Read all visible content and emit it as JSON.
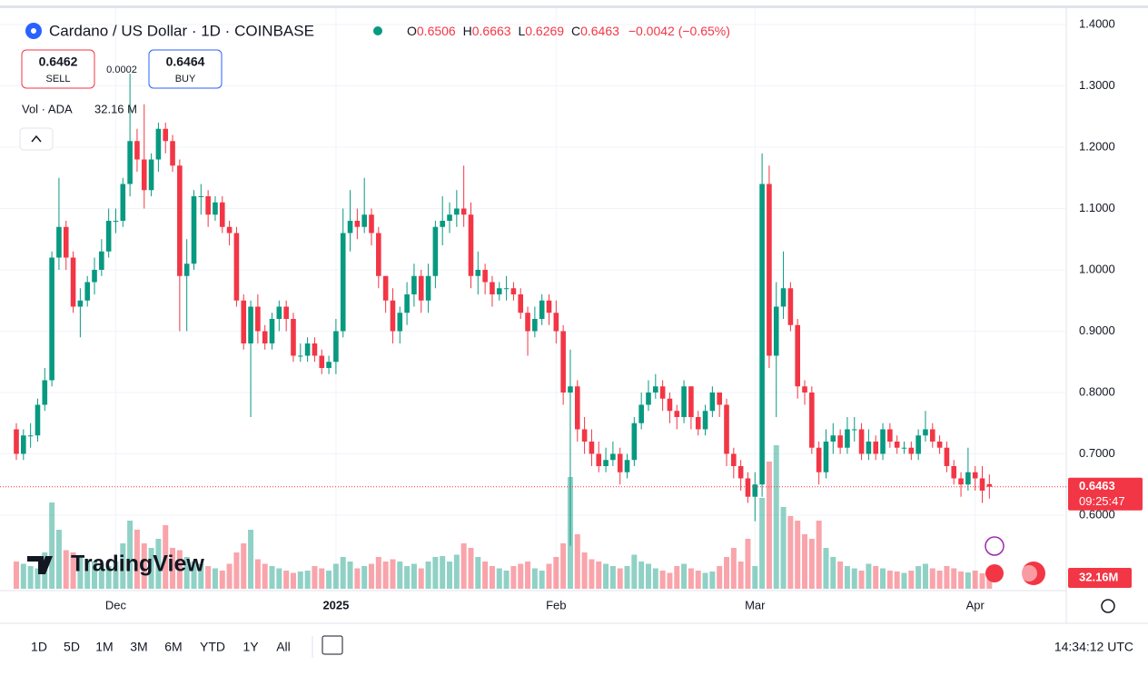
{
  "header": {
    "symbol": "Cardano / US Dollar · 1D · COINBASE",
    "ohlc_labels": [
      "O",
      "H",
      "L",
      "C"
    ],
    "change": "−0.0042 (−0.65%)",
    "sell": {
      "price": 0.6462,
      "label": "SELL"
    },
    "spread": 0.0002,
    "buy": {
      "price": 0.6464,
      "label": "BUY"
    },
    "volume_title": "Vol · ADA",
    "volume_value": "32.16 M",
    "countdown": "09:25:47",
    "volume_tag": "32.16M",
    "brand": "TradingView"
  },
  "toolbar": {
    "ranges": [
      "1D",
      "5D",
      "1M",
      "3M",
      "6M",
      "YTD",
      "1Y",
      "All"
    ],
    "clock": "14:34:12 UTC"
  },
  "chart_data": {
    "type": "candlestick",
    "up_color": "#089981",
    "down_color": "#f23645",
    "grid": true,
    "categories": [
      null,
      null,
      null,
      null,
      null,
      null,
      null,
      null,
      null,
      null,
      null,
      null,
      null,
      null,
      "Dec",
      null,
      null,
      null,
      null,
      null,
      null,
      null,
      null,
      null,
      null,
      null,
      null,
      null,
      null,
      null,
      null,
      null,
      null,
      null,
      null,
      null,
      null,
      null,
      null,
      null,
      null,
      null,
      null,
      null,
      null,
      "2025",
      null,
      null,
      null,
      null,
      null,
      null,
      null,
      null,
      null,
      null,
      null,
      null,
      null,
      null,
      null,
      null,
      null,
      null,
      null,
      null,
      null,
      null,
      null,
      null,
      null,
      null,
      null,
      null,
      null,
      null,
      "Feb",
      null,
      null,
      null,
      null,
      null,
      null,
      null,
      null,
      null,
      null,
      null,
      null,
      null,
      null,
      null,
      null,
      null,
      null,
      null,
      null,
      null,
      null,
      null,
      null,
      null,
      null,
      null,
      "Mar",
      null,
      null,
      null,
      null,
      null,
      null,
      null,
      null,
      null,
      null,
      null,
      null,
      null,
      null,
      null,
      null,
      null,
      null,
      null,
      null,
      null,
      null,
      null,
      null,
      null,
      null,
      null,
      null,
      null,
      null,
      "Apr",
      null,
      null
    ],
    "open": [
      0.74,
      0.7,
      0.73,
      0.73,
      0.78,
      0.82,
      1.02,
      1.07,
      1.02,
      0.94,
      0.95,
      0.98,
      1.0,
      1.03,
      1.08,
      1.08,
      1.14,
      1.21,
      1.18,
      1.13,
      1.18,
      1.23,
      1.21,
      1.17,
      0.99,
      1.01,
      1.12,
      1.12,
      1.09,
      1.11,
      1.07,
      1.06,
      0.95,
      0.88,
      0.94,
      0.9,
      0.88,
      0.92,
      0.94,
      0.92,
      0.86,
      0.86,
      0.88,
      0.86,
      0.84,
      0.85,
      0.9,
      1.06,
      1.08,
      1.07,
      1.09,
      1.06,
      0.99,
      0.95,
      0.9,
      0.93,
      0.96,
      0.99,
      0.95,
      0.99,
      1.07,
      1.08,
      1.09,
      1.1,
      1.09,
      0.99,
      1.0,
      0.98,
      0.96,
      0.97,
      0.97,
      0.96,
      0.93,
      0.9,
      0.92,
      0.95,
      0.93,
      0.9,
      0.8,
      0.81,
      0.74,
      0.72,
      0.7,
      0.68,
      0.69,
      0.7,
      0.67,
      0.69,
      0.75,
      0.78,
      0.8,
      0.81,
      0.79,
      0.77,
      0.76,
      0.81,
      0.76,
      0.74,
      0.77,
      0.8,
      0.78,
      0.7,
      0.68,
      0.66,
      0.63,
      0.65,
      1.14,
      0.86,
      0.94,
      0.97,
      0.91,
      0.81,
      0.8,
      0.71,
      0.67,
      0.72,
      0.73,
      0.71,
      0.74,
      0.74,
      0.7,
      0.72,
      0.7,
      0.74,
      0.72,
      0.71,
      0.71,
      0.7,
      0.73,
      0.74,
      0.72,
      0.71,
      0.68,
      0.66,
      0.65,
      0.67,
      0.66,
      0.6506
    ],
    "high": [
      0.75,
      0.74,
      0.75,
      0.79,
      0.84,
      1.03,
      1.15,
      1.08,
      1.03,
      0.97,
      0.99,
      1.02,
      1.05,
      1.1,
      1.1,
      1.15,
      1.32,
      1.23,
      1.27,
      1.19,
      1.24,
      1.24,
      1.22,
      1.18,
      1.05,
      1.13,
      1.14,
      1.13,
      1.12,
      1.12,
      1.08,
      1.07,
      0.96,
      0.95,
      0.96,
      0.91,
      0.93,
      0.95,
      0.95,
      0.93,
      0.88,
      0.89,
      0.89,
      0.87,
      0.86,
      0.92,
      1.1,
      1.13,
      1.1,
      1.15,
      1.1,
      1.07,
      0.99,
      0.97,
      0.94,
      0.98,
      1.01,
      1.0,
      1.01,
      1.08,
      1.12,
      1.11,
      1.13,
      1.17,
      1.11,
      1.03,
      1.01,
      0.99,
      0.98,
      0.99,
      0.98,
      0.97,
      0.94,
      0.94,
      0.96,
      0.96,
      0.95,
      0.91,
      0.87,
      0.82,
      0.76,
      0.74,
      0.72,
      0.71,
      0.72,
      0.71,
      0.7,
      0.76,
      0.8,
      0.82,
      0.83,
      0.82,
      0.8,
      0.78,
      0.82,
      0.81,
      0.77,
      0.78,
      0.81,
      0.8,
      0.79,
      0.71,
      0.69,
      0.67,
      0.67,
      1.19,
      1.17,
      0.98,
      1.03,
      0.98,
      0.92,
      0.82,
      0.81,
      0.72,
      0.74,
      0.75,
      0.74,
      0.76,
      0.76,
      0.75,
      0.74,
      0.73,
      0.75,
      0.75,
      0.73,
      0.72,
      0.72,
      0.74,
      0.77,
      0.75,
      0.73,
      0.72,
      0.69,
      0.67,
      0.71,
      0.68,
      0.68,
      0.6663
    ],
    "low": [
      0.69,
      0.69,
      0.71,
      0.72,
      0.77,
      0.81,
      1.0,
      1.0,
      0.93,
      0.89,
      0.94,
      0.96,
      0.99,
      1.02,
      1.06,
      1.07,
      1.12,
      1.16,
      1.1,
      1.12,
      1.16,
      1.19,
      1.16,
      0.9,
      0.9,
      1.0,
      1.09,
      1.07,
      1.08,
      1.06,
      1.04,
      0.94,
      0.87,
      0.76,
      0.88,
      0.87,
      0.87,
      0.9,
      0.9,
      0.85,
      0.85,
      0.85,
      0.85,
      0.83,
      0.83,
      0.83,
      0.89,
      1.03,
      1.05,
      1.06,
      1.04,
      0.97,
      0.93,
      0.88,
      0.88,
      0.91,
      0.94,
      0.93,
      0.93,
      0.97,
      1.04,
      1.06,
      1.07,
      1.07,
      0.97,
      0.96,
      0.96,
      0.94,
      0.95,
      0.95,
      0.95,
      0.92,
      0.86,
      0.89,
      0.91,
      0.91,
      0.88,
      0.78,
      0.55,
      0.72,
      0.7,
      0.68,
      0.67,
      0.67,
      0.68,
      0.65,
      0.66,
      0.68,
      0.74,
      0.77,
      0.79,
      0.77,
      0.75,
      0.74,
      0.75,
      0.74,
      0.73,
      0.73,
      0.76,
      0.76,
      0.68,
      0.66,
      0.64,
      0.62,
      0.59,
      0.63,
      0.84,
      0.76,
      0.92,
      0.9,
      0.79,
      0.78,
      0.7,
      0.65,
      0.66,
      0.7,
      0.7,
      0.7,
      0.72,
      0.69,
      0.69,
      0.69,
      0.69,
      0.71,
      0.7,
      0.7,
      0.69,
      0.69,
      0.72,
      0.71,
      0.7,
      0.67,
      0.65,
      0.63,
      0.64,
      0.64,
      0.62,
      0.6269
    ],
    "close": [
      0.7,
      0.73,
      0.73,
      0.78,
      0.82,
      1.02,
      1.07,
      1.02,
      0.94,
      0.95,
      0.98,
      1.0,
      1.03,
      1.08,
      1.08,
      1.14,
      1.21,
      1.18,
      1.13,
      1.18,
      1.23,
      1.21,
      1.17,
      0.99,
      1.01,
      1.12,
      1.12,
      1.09,
      1.11,
      1.07,
      1.06,
      0.95,
      0.88,
      0.94,
      0.9,
      0.88,
      0.92,
      0.94,
      0.92,
      0.86,
      0.86,
      0.88,
      0.86,
      0.84,
      0.85,
      0.9,
      1.06,
      1.08,
      1.07,
      1.09,
      1.06,
      0.99,
      0.95,
      0.9,
      0.93,
      0.96,
      0.99,
      0.95,
      0.99,
      1.07,
      1.08,
      1.09,
      1.1,
      1.09,
      0.99,
      1.0,
      0.98,
      0.96,
      0.97,
      0.97,
      0.96,
      0.93,
      0.9,
      0.92,
      0.95,
      0.93,
      0.9,
      0.8,
      0.81,
      0.74,
      0.72,
      0.7,
      0.68,
      0.69,
      0.7,
      0.67,
      0.69,
      0.75,
      0.78,
      0.8,
      0.81,
      0.79,
      0.77,
      0.76,
      0.81,
      0.76,
      0.74,
      0.77,
      0.8,
      0.78,
      0.7,
      0.68,
      0.66,
      0.63,
      0.65,
      1.14,
      0.86,
      0.94,
      0.97,
      0.91,
      0.81,
      0.8,
      0.71,
      0.67,
      0.72,
      0.73,
      0.71,
      0.74,
      0.74,
      0.7,
      0.72,
      0.7,
      0.74,
      0.72,
      0.71,
      0.71,
      0.7,
      0.73,
      0.74,
      0.72,
      0.71,
      0.68,
      0.66,
      0.65,
      0.67,
      0.66,
      0.64,
      0.6463
    ],
    "volume": [
      60,
      55,
      50,
      45,
      80,
      190,
      130,
      85,
      80,
      70,
      65,
      60,
      55,
      50,
      60,
      100,
      150,
      130,
      100,
      90,
      110,
      140,
      90,
      85,
      70,
      60,
      55,
      50,
      45,
      40,
      55,
      80,
      100,
      130,
      65,
      55,
      50,
      45,
      40,
      35,
      38,
      40,
      50,
      45,
      40,
      55,
      70,
      60,
      45,
      50,
      55,
      70,
      60,
      65,
      60,
      50,
      55,
      45,
      60,
      70,
      72,
      60,
      75,
      100,
      90,
      70,
      60,
      50,
      45,
      40,
      50,
      55,
      60,
      45,
      40,
      55,
      70,
      100,
      246,
      120,
      80,
      65,
      60,
      55,
      50,
      45,
      50,
      75,
      60,
      55,
      45,
      40,
      35,
      50,
      55,
      45,
      40,
      35,
      38,
      50,
      70,
      90,
      60,
      110,
      50,
      200,
      280,
      316,
      180,
      160,
      150,
      120,
      110,
      150,
      90,
      70,
      60,
      50,
      45,
      40,
      55,
      50,
      45,
      40,
      38,
      35,
      40,
      50,
      55,
      45,
      40,
      50,
      45,
      38,
      36,
      40,
      34,
      32.16
    ],
    "ylim": [
      0.477,
      1.4252
    ],
    "yticks": [
      {
        "value": 1.4,
        "label": "1.4000"
      },
      {
        "value": 1.3,
        "label": "1.3000"
      },
      {
        "value": 1.2,
        "label": "1.2000"
      },
      {
        "value": 1.1,
        "label": "1.1000"
      },
      {
        "value": 1.0,
        "label": "1.0000"
      },
      {
        "value": 0.9,
        "label": "0.9000"
      },
      {
        "value": 0.8,
        "label": "0.8000"
      },
      {
        "value": 0.7,
        "label": "0.7000"
      },
      {
        "value": 0.6,
        "label": "0.6000"
      }
    ]
  }
}
